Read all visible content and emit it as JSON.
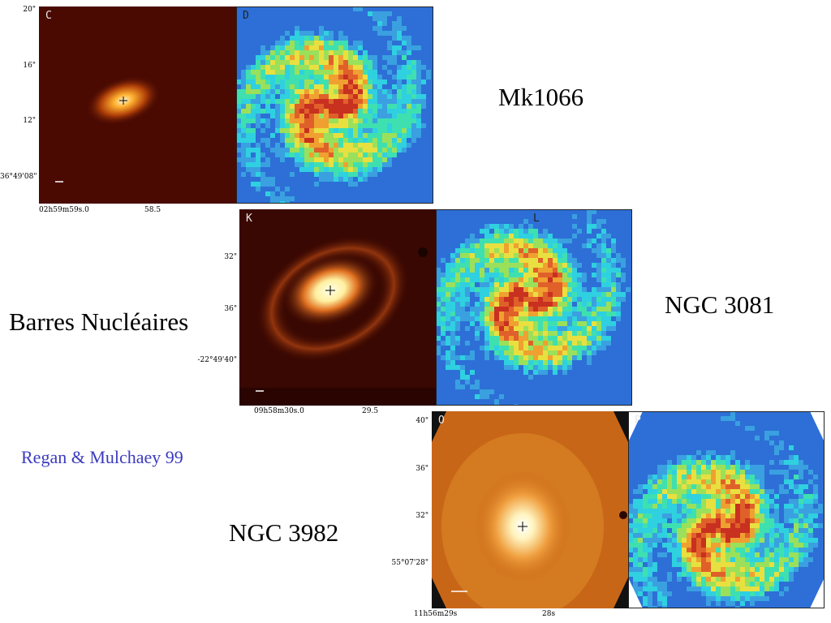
{
  "slide": {
    "heading": "Barres Nucléaires",
    "citation": "Regan & Mulchaey 99"
  },
  "galaxies": [
    {
      "name": "Mk1066",
      "intensity_panel_letter": "C",
      "color_panel_letter": "D",
      "y_ticks": [
        "20\"",
        "16\"",
        "12\"",
        "36°49'08\""
      ],
      "x_ticks": [
        "02h59m59s.0",
        "58.5"
      ],
      "intensity_color": "#c85a10",
      "background_color": "#4a0a02"
    },
    {
      "name": "NGC 3081",
      "intensity_panel_letter": "K",
      "color_panel_letter": "L",
      "y_ticks": [
        "32\"",
        "36\"",
        "-22°49'40\""
      ],
      "x_ticks": [
        "09h58m30s.0",
        "29.5"
      ],
      "intensity_color": "#e07020",
      "background_color": "#3a0802"
    },
    {
      "name": "NGC 3982",
      "intensity_panel_letter": "O",
      "color_panel_letter": "P",
      "y_ticks": [
        "40\"",
        "36\"",
        "32\"",
        "55°07'28\""
      ],
      "x_ticks": [
        "11h56m29s",
        "28s"
      ],
      "intensity_color": "#e88a20",
      "background_color": "#b85010"
    }
  ]
}
